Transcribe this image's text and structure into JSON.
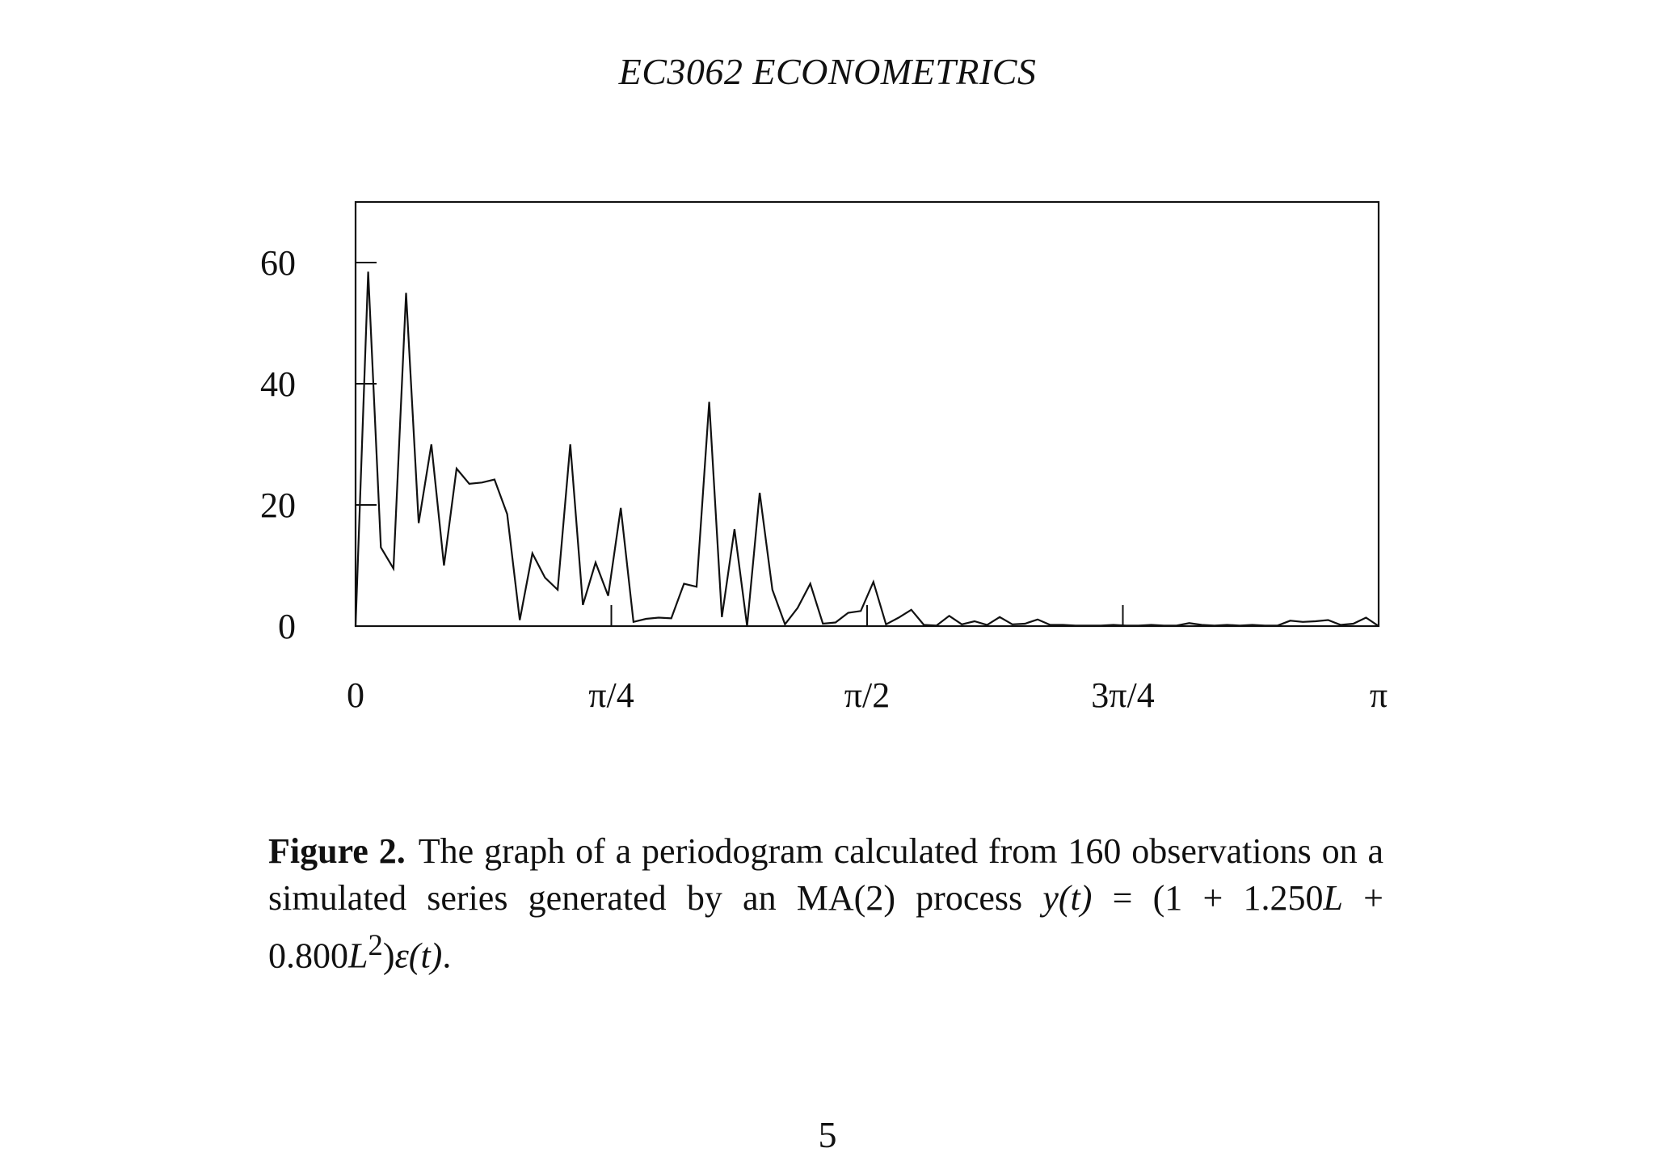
{
  "header": {
    "running_head": "EC3062 ECONOMETRICS"
  },
  "chart_data": {
    "type": "line",
    "title": "",
    "xlabel": "",
    "ylabel": "",
    "xlim": [
      0,
      3.14159
    ],
    "ylim": [
      0,
      70
    ],
    "grid": false,
    "x_ticks": [
      {
        "value": 0,
        "label": "0"
      },
      {
        "value": 0.7854,
        "label": "π/4"
      },
      {
        "value": 1.5708,
        "label": "π/2"
      },
      {
        "value": 2.3562,
        "label": "3π/4"
      },
      {
        "value": 3.14159,
        "label": "π"
      }
    ],
    "y_ticks": [
      {
        "value": 0,
        "label": "0"
      },
      {
        "value": 20,
        "label": "20"
      },
      {
        "value": 40,
        "label": "40"
      },
      {
        "value": 60,
        "label": "60"
      }
    ],
    "series": [
      {
        "values": [
          0,
          58.5,
          13,
          9.5,
          55,
          17,
          30,
          10,
          26,
          23.5,
          23.7,
          24.2,
          18.5,
          1,
          12,
          8,
          6,
          30,
          3.5,
          10.5,
          5,
          19.5,
          0.7,
          1.2,
          1.4,
          1.3,
          7,
          6.5,
          37,
          1.5,
          16,
          0,
          22,
          6,
          0.3,
          3,
          7,
          0.4,
          0.6,
          2.2,
          2.5,
          7.3,
          0.3,
          1.4,
          2.7,
          0.2,
          0.1,
          1.7,
          0.3,
          0.8,
          0.2,
          1.5,
          0.3,
          0.4,
          1.1,
          0.2,
          0.2,
          0.1,
          0.1,
          0.1,
          0.2,
          0.1,
          0.1,
          0.2,
          0.1,
          0.1,
          0.5,
          0.2,
          0.1,
          0.2,
          0.1,
          0.2,
          0.1,
          0.1,
          0.9,
          0.7,
          0.8,
          1.0,
          0.2,
          0.4,
          1.4,
          0
        ]
      }
    ]
  },
  "caption": {
    "label": "Figure 2.",
    "text": "The graph of a periodogram calculated from 160 observations on a simulated series generated by an MA(2) process",
    "eq_lhs": "y(t)",
    "eq_eq": " = (1 + 1.250",
    "eq_L1": "L",
    "eq_mid": " + 0.800",
    "eq_L2": "L",
    "eq_sup": "2",
    "eq_paren": ")",
    "eq_eps": "ε(t)",
    "eq_end": "."
  },
  "page": {
    "number": "5"
  }
}
